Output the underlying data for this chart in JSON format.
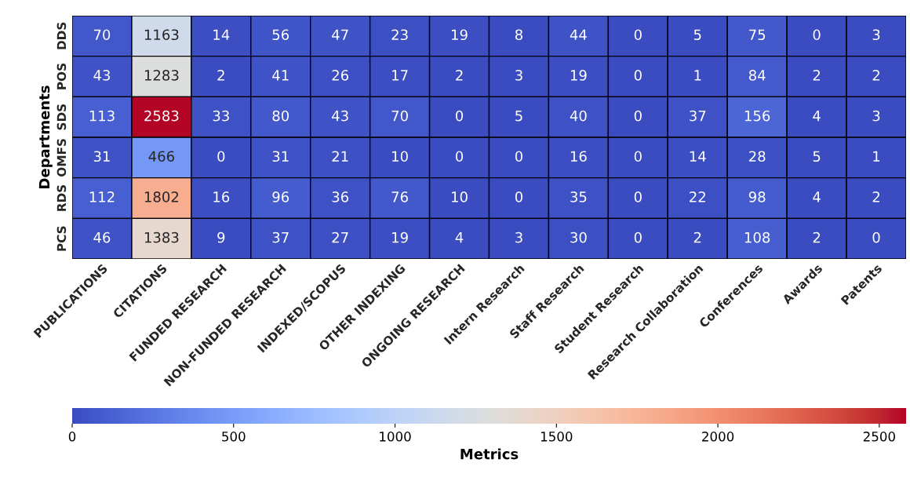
{
  "chart_data": {
    "type": "heatmap",
    "ylabel": "Departments",
    "clabel": "Metrics",
    "categories": [
      "PUBLICATIONS",
      "CITATIONS",
      "FUNDED RESEARCH",
      "NON-FUNDED RESEARCH",
      "INDEXED/SCOPUS",
      "OTHER INDEXING",
      "ONGOING RESEARCH",
      "Intern Research",
      "Staff Research",
      "Student Research",
      "Research Collaboration",
      "Conferences",
      "Awards",
      "Patents"
    ],
    "y_categories": [
      "DDS",
      "POS",
      "SDS",
      "OMFS",
      "RDS",
      "PCS"
    ],
    "cells": [
      [
        70,
        1163,
        14,
        56,
        47,
        23,
        19,
        8,
        44,
        0,
        5,
        75,
        0,
        3
      ],
      [
        43,
        1283,
        2,
        41,
        26,
        17,
        2,
        3,
        19,
        0,
        1,
        84,
        2,
        2
      ],
      [
        113,
        2583,
        33,
        80,
        43,
        70,
        0,
        5,
        40,
        0,
        37,
        156,
        4,
        3
      ],
      [
        31,
        466,
        0,
        31,
        21,
        10,
        0,
        0,
        16,
        0,
        14,
        28,
        5,
        1
      ],
      [
        112,
        1802,
        16,
        96,
        36,
        76,
        10,
        0,
        35,
        0,
        22,
        98,
        4,
        2
      ],
      [
        46,
        1383,
        9,
        37,
        27,
        19,
        4,
        3,
        30,
        0,
        2,
        108,
        2,
        0
      ]
    ],
    "clim": [
      0,
      2583
    ],
    "cticks": [
      0,
      500,
      1000,
      1500,
      2000,
      2500
    ],
    "data_labels": true
  }
}
